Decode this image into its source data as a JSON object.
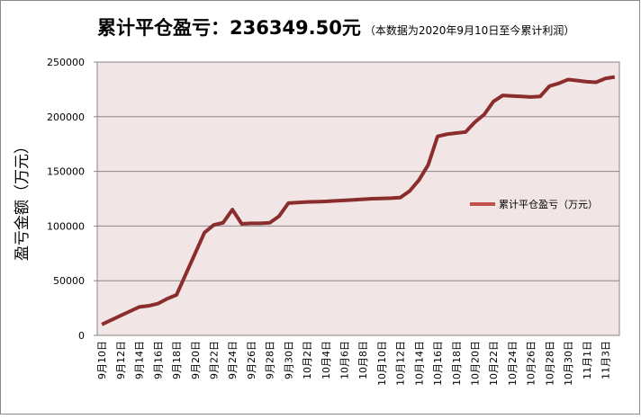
{
  "chart_data": {
    "type": "line",
    "title": "累计平仓盈亏：236349.50元",
    "subtitle": "（本数据为2020年9月10日至今累计利润）",
    "y_label": "盈亏金额（万元）",
    "categories": [
      "9月10日",
      null,
      "9月12日",
      null,
      "9月14日",
      null,
      "9月16日",
      null,
      "9月18日",
      null,
      "9月20日",
      null,
      "9月22日",
      null,
      "9月24日",
      null,
      "9月26日",
      null,
      "9月28日",
      null,
      "9月30日",
      null,
      "10月2日",
      null,
      "10月4日",
      null,
      "10月6日",
      null,
      "10月8日",
      null,
      "10月10日",
      null,
      "10月12日",
      null,
      "10月14日",
      null,
      "10月16日",
      null,
      "10月18日",
      null,
      "10月20日",
      null,
      "10月22日",
      null,
      "10月24日",
      null,
      "10月26日",
      null,
      "10月28日",
      null,
      "10月30日",
      null,
      "11月1日",
      null,
      "11月3日",
      null
    ],
    "series": [
      {
        "name": "累计平仓盈亏（万元）",
        "color": "#8b2d2d",
        "legend_color": "#c0504d",
        "values": [
          10000,
          14000,
          18000,
          22000,
          26000,
          27000,
          29000,
          33500,
          37000,
          56000,
          75000,
          94000,
          101000,
          103000,
          115000,
          102000,
          102500,
          102500,
          103000,
          109000,
          121000,
          121500,
          122000,
          122200,
          122500,
          123000,
          123500,
          124000,
          124500,
          125000,
          125200,
          125500,
          126000,
          132000,
          142000,
          156000,
          182000,
          184000,
          185000,
          186000,
          195000,
          202000,
          214000,
          219500,
          219000,
          218500,
          218000,
          218500,
          228000,
          230500,
          234000,
          233000,
          232000,
          231500,
          235000,
          236349.5
        ]
      }
    ],
    "ylim": [
      0,
      250000
    ],
    "yticks": [
      0,
      50000,
      100000,
      150000,
      200000,
      250000
    ],
    "grid": true,
    "legend": "right"
  }
}
